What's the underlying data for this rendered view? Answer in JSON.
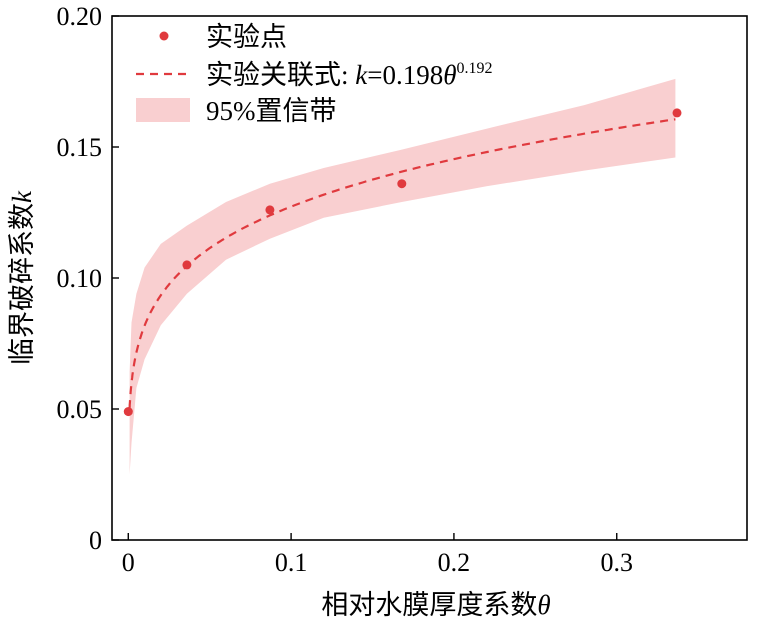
{
  "chart_data": {
    "type": "scatter",
    "title": "",
    "xlabel": "相对水膜厚度系数",
    "xlabel_symbol": "θ",
    "ylabel": "临界破碎系数",
    "ylabel_symbol": "k",
    "xlim": [
      -0.01,
      0.38
    ],
    "ylim": [
      0,
      0.2
    ],
    "xticks": [
      0,
      0.1,
      0.2,
      0.3
    ],
    "xtick_labels": [
      "0",
      "0.1",
      "0.2",
      "0.3"
    ],
    "yticks": [
      0,
      0.05,
      0.1,
      0.15,
      0.2
    ],
    "ytick_labels": [
      "0",
      "0.05",
      "0.10",
      "0.15",
      "0.20"
    ],
    "grid": false,
    "legend_position": "top-left",
    "series": [
      {
        "name": "实验点",
        "kind": "scatter",
        "color": "#e03a3e",
        "x": [
          0.0,
          0.036,
          0.087,
          0.168,
          0.337
        ],
        "y": [
          0.049,
          0.105,
          0.126,
          0.136,
          0.163
        ]
      },
      {
        "name": "实验关联式",
        "kind": "fit-line",
        "style": "dashed",
        "color": "#e03a3e",
        "equation_lhs": "k",
        "equation_rhs": "=0.198",
        "equation_base": "θ",
        "equation_exponent": "0.192",
        "coefficient": 0.198,
        "exponent": 0.192,
        "x_range": [
          0.0008,
          0.336
        ]
      },
      {
        "name": "95%置信带",
        "kind": "band",
        "color": "#f9cfd0",
        "x": [
          0.0008,
          0.002,
          0.005,
          0.01,
          0.02,
          0.036,
          0.06,
          0.087,
          0.12,
          0.168,
          0.22,
          0.28,
          0.336
        ],
        "lower": [
          0.025,
          0.037,
          0.058,
          0.069,
          0.082,
          0.094,
          0.107,
          0.115,
          0.123,
          0.129,
          0.135,
          0.141,
          0.146
        ],
        "upper": [
          0.064,
          0.083,
          0.094,
          0.104,
          0.113,
          0.12,
          0.129,
          0.136,
          0.142,
          0.149,
          0.157,
          0.166,
          0.176
        ]
      }
    ]
  }
}
